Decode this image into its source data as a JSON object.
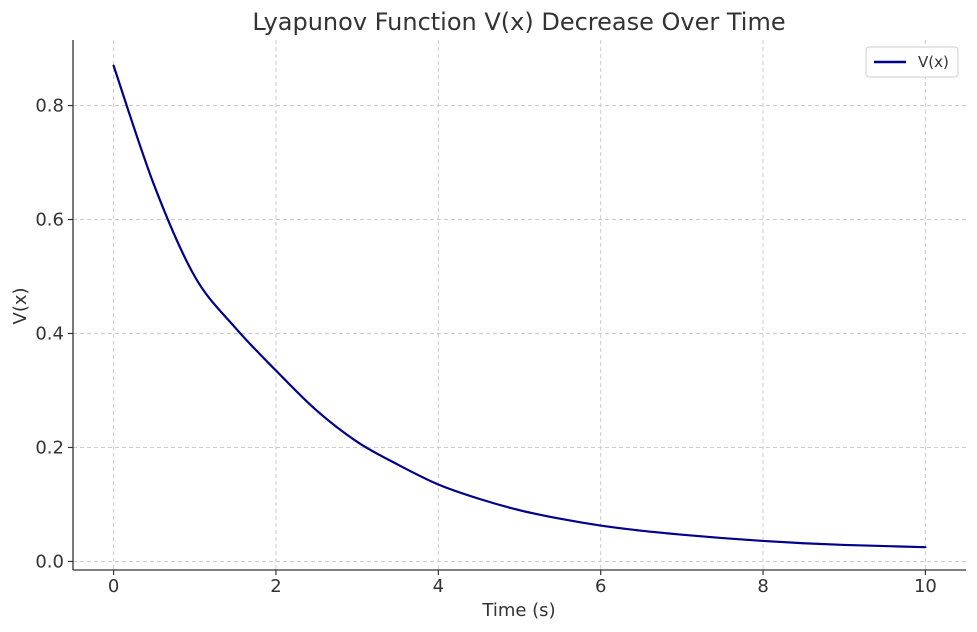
{
  "chart_data": {
    "type": "line",
    "title": "Lyapunov Function V(x) Decrease Over Time",
    "xlabel": "Time (s)",
    "ylabel": "V(x)",
    "xlim": [
      -0.5,
      10.5
    ],
    "ylim": [
      -0.015,
      0.915
    ],
    "x_ticks": [
      0,
      2,
      4,
      6,
      8,
      10
    ],
    "x_tick_labels": [
      "0",
      "2",
      "4",
      "6",
      "8",
      "10"
    ],
    "y_ticks": [
      0.0,
      0.2,
      0.4,
      0.6,
      0.8
    ],
    "y_tick_labels": [
      "0.0",
      "0.2",
      "0.4",
      "0.6",
      "0.8"
    ],
    "grid": true,
    "legend": {
      "position": "top-right",
      "entries": [
        "V(x)"
      ]
    },
    "series": [
      {
        "name": "V(x)",
        "color": "#00008b",
        "x": [
          0,
          0.5,
          1,
          1.5,
          2,
          2.5,
          3,
          3.5,
          4,
          4.5,
          5,
          5.5,
          6,
          6.5,
          7,
          7.5,
          8,
          8.5,
          9,
          9.5,
          10
        ],
        "y": [
          0.87,
          0.66,
          0.5,
          0.41,
          0.335,
          0.265,
          0.21,
          0.17,
          0.135,
          0.11,
          0.09,
          0.075,
          0.063,
          0.054,
          0.047,
          0.041,
          0.036,
          0.032,
          0.029,
          0.027,
          0.025
        ]
      }
    ]
  }
}
